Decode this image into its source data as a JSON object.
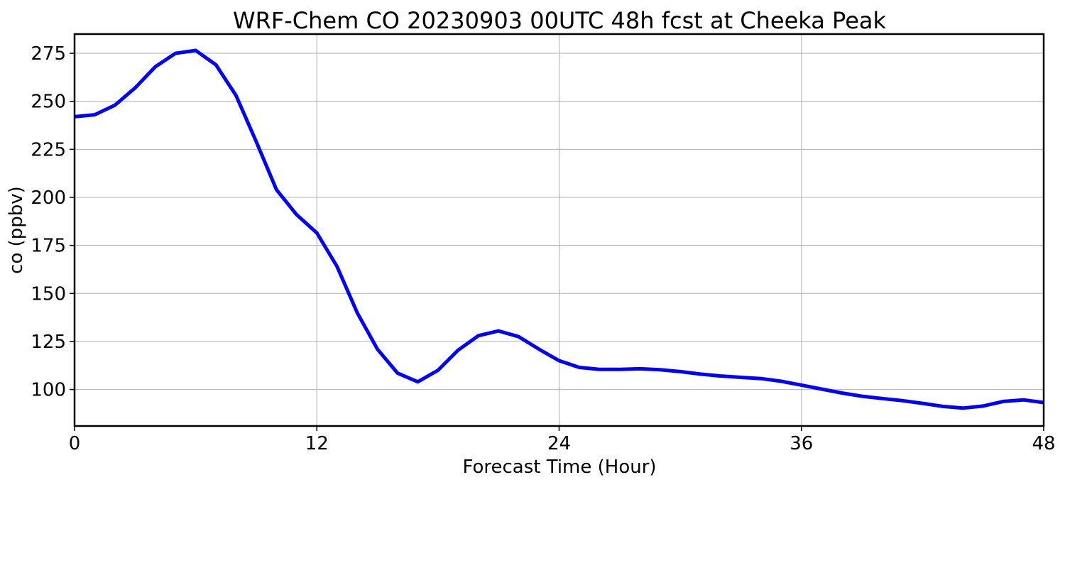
{
  "chart_data": {
    "type": "line",
    "title": "WRF-Chem CO  20230903 00UTC 48h fcst at Cheeka Peak",
    "xlabel": "Forecast Time (Hour)",
    "ylabel": "co  (ppbv)",
    "xlim": [
      0,
      48
    ],
    "ylim": [
      81,
      285
    ],
    "xticks": [
      0,
      12,
      24,
      36,
      48
    ],
    "yticks": [
      100,
      125,
      150,
      175,
      200,
      225,
      250,
      275
    ],
    "grid": true,
    "legend": "none",
    "series": [
      {
        "color": "#0000ff",
        "x": [
          0,
          1,
          2,
          3,
          4,
          5,
          6,
          7,
          8,
          9,
          10,
          11,
          12,
          13,
          14,
          15,
          16,
          17,
          18,
          19,
          20,
          21,
          22,
          23,
          24,
          25,
          26,
          27,
          28,
          29,
          30,
          31,
          32,
          33,
          34,
          35,
          36,
          37,
          38,
          39,
          40,
          41,
          42,
          43,
          44,
          45,
          46,
          47,
          48
        ],
        "y": [
          242,
          243,
          248,
          257,
          268,
          275,
          276.5,
          269,
          253,
          229,
          204,
          191,
          181.5,
          164,
          140,
          121,
          108.5,
          104,
          110,
          120.5,
          128,
          130.5,
          127.5,
          121,
          115,
          111.5,
          110.5,
          110.5,
          110.8,
          110.3,
          109.3,
          108,
          107,
          106.3,
          105.7,
          104.3,
          102.3,
          100.2,
          98.2,
          96.5,
          95.3,
          94.2,
          92.8,
          91.2,
          90.3,
          91.4,
          93.8,
          94.6,
          93.2
        ]
      }
    ]
  }
}
